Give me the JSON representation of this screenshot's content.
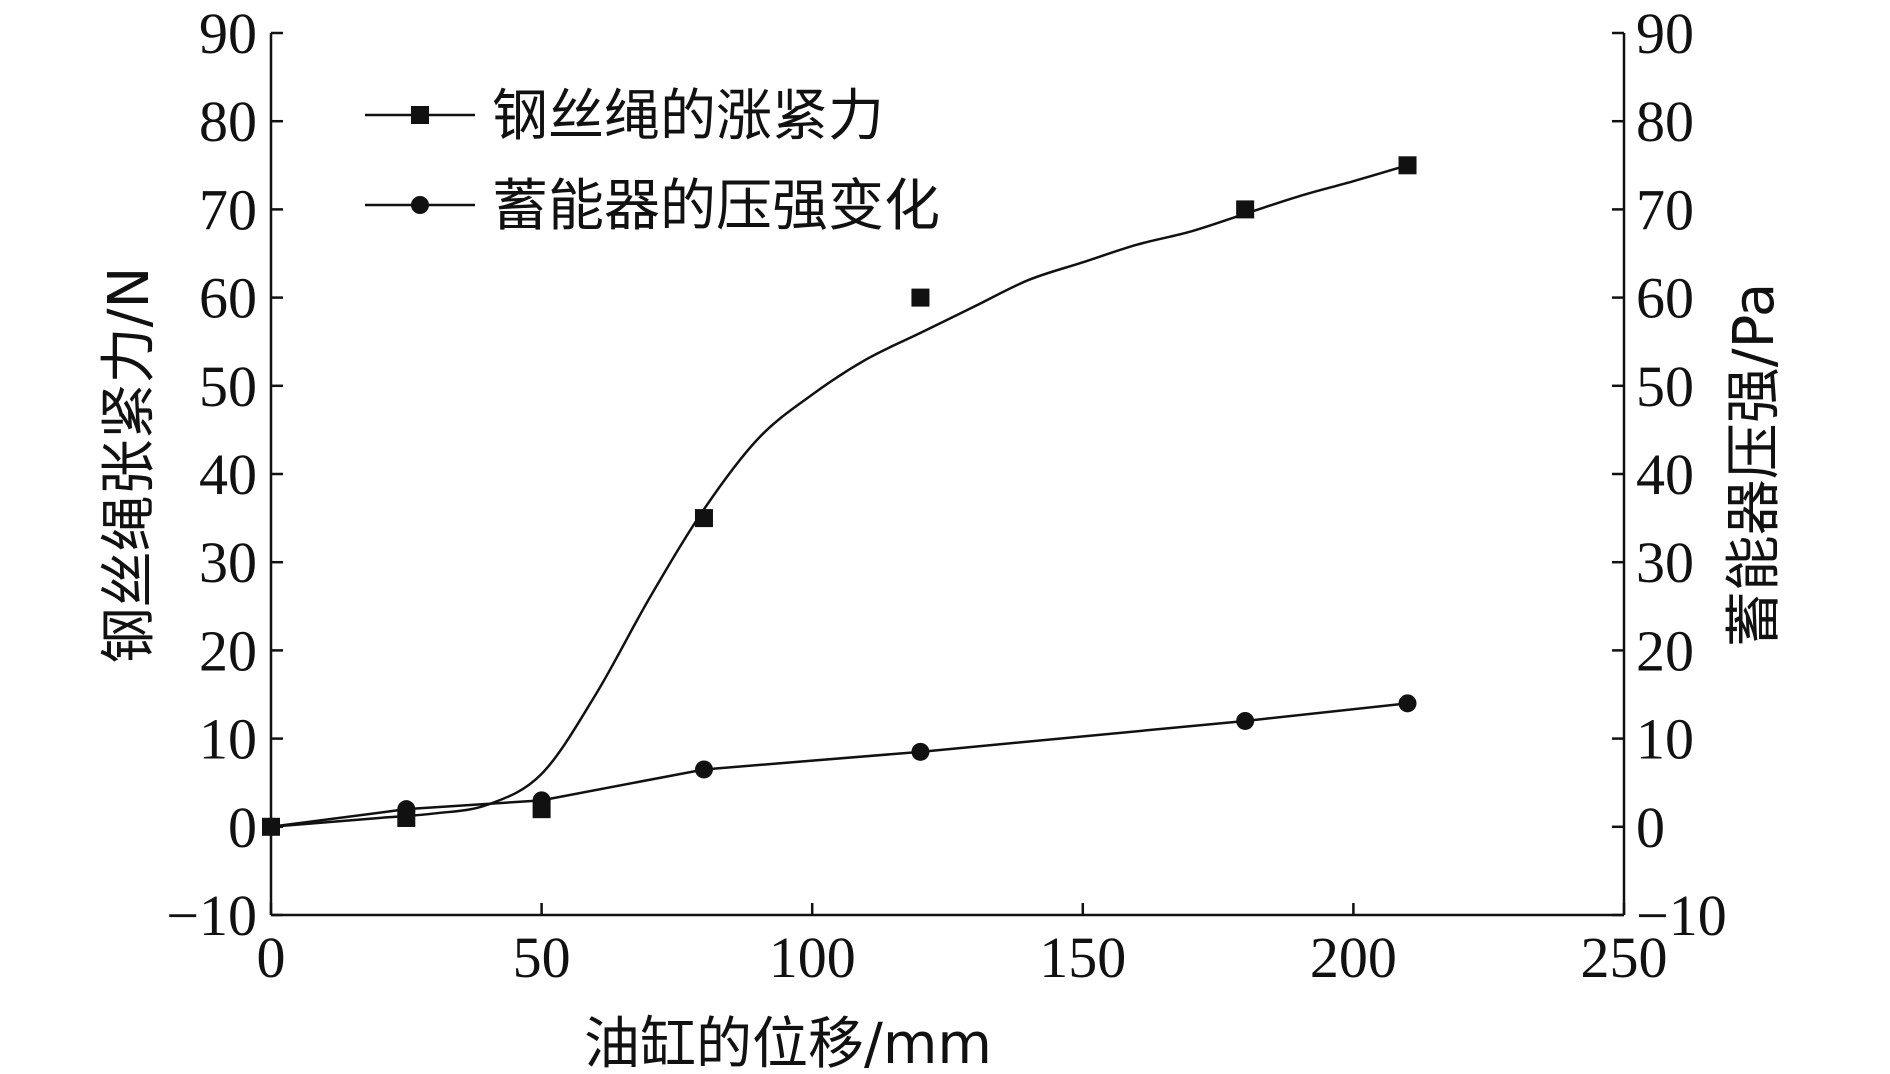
{
  "chart_data": {
    "type": "scatter",
    "xlabel": "油缸的位移/mm",
    "ylabel_left": "钢丝绳张紧力/N",
    "ylabel_right": "蓄能器压强/Pa",
    "xlim": [
      0,
      250
    ],
    "ylim": [
      -10,
      90
    ],
    "xticks": [
      "0",
      "50",
      "100",
      "150",
      "200",
      "250"
    ],
    "yticks": [
      "−10",
      "0",
      "10",
      "20",
      "30",
      "40",
      "50",
      "60",
      "70",
      "80",
      "90"
    ],
    "grid": false,
    "legend_position": "top-left",
    "series": [
      {
        "name": "钢丝绳的涨紧力",
        "marker": "square",
        "axis": "left",
        "x": [
          0,
          25,
          50,
          80,
          120,
          180,
          210
        ],
        "y": [
          0,
          1,
          2,
          35,
          60,
          70,
          75
        ],
        "curve_x": [
          0,
          10,
          20,
          30,
          40,
          50,
          60,
          70,
          80,
          90,
          100,
          110,
          120,
          130,
          140,
          150,
          160,
          170,
          180,
          190,
          200,
          210
        ],
        "curve_y": [
          0,
          0.5,
          1,
          1.5,
          2.5,
          6,
          15,
          26,
          36,
          44,
          49,
          53,
          56,
          59,
          62,
          64,
          66,
          67.5,
          69.5,
          71.5,
          73.2,
          75
        ]
      },
      {
        "name": "蓄能器的压强变化",
        "marker": "circle",
        "axis": "right",
        "x": [
          0,
          25,
          50,
          80,
          120,
          180,
          210
        ],
        "y": [
          0,
          2,
          3,
          6.5,
          8.5,
          12,
          14
        ]
      }
    ]
  }
}
